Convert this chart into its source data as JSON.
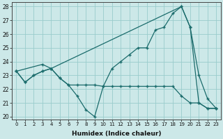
{
  "xlabel": "Humidex (Indice chaleur)",
  "xlim": [
    -0.5,
    23.5
  ],
  "ylim": [
    19.8,
    28.3
  ],
  "xticks": [
    0,
    1,
    2,
    3,
    4,
    5,
    6,
    7,
    8,
    9,
    10,
    11,
    12,
    13,
    14,
    15,
    16,
    17,
    18,
    19,
    20,
    21,
    22,
    23
  ],
  "yticks": [
    20,
    21,
    22,
    23,
    24,
    25,
    26,
    27,
    28
  ],
  "background_color": "#cce8e8",
  "grid_color": "#99cccc",
  "line_color": "#1a6b6b",
  "line1_x": [
    0,
    1,
    2,
    3,
    4,
    5,
    6,
    7,
    8,
    9,
    10,
    11,
    12,
    13,
    14,
    15,
    16,
    17,
    18,
    19,
    20,
    21,
    22,
    23
  ],
  "line1_y": [
    23.3,
    22.5,
    23.0,
    23.3,
    23.5,
    22.8,
    22.3,
    22.3,
    22.3,
    22.3,
    22.2,
    23.5,
    24.0,
    24.5,
    25.0,
    25.0,
    26.3,
    26.5,
    27.5,
    28.0,
    26.5,
    23.0,
    21.3,
    20.6
  ],
  "line2_x": [
    0,
    3,
    4,
    19,
    20,
    21,
    22,
    23
  ],
  "line2_y": [
    23.3,
    23.8,
    23.5,
    28.0,
    26.5,
    21.0,
    20.6,
    20.6
  ],
  "line3_x": [
    0,
    1,
    2,
    3,
    4,
    5,
    6,
    7,
    8,
    9,
    10,
    11,
    12,
    13,
    14,
    15,
    16,
    17,
    18,
    19,
    20,
    21,
    22,
    23
  ],
  "line3_y": [
    23.3,
    22.5,
    23.0,
    23.3,
    23.5,
    22.8,
    22.3,
    21.5,
    20.5,
    20.0,
    22.2,
    22.2,
    22.2,
    22.2,
    22.2,
    22.2,
    22.2,
    22.2,
    22.2,
    21.5,
    21.0,
    21.0,
    20.6,
    20.6
  ]
}
